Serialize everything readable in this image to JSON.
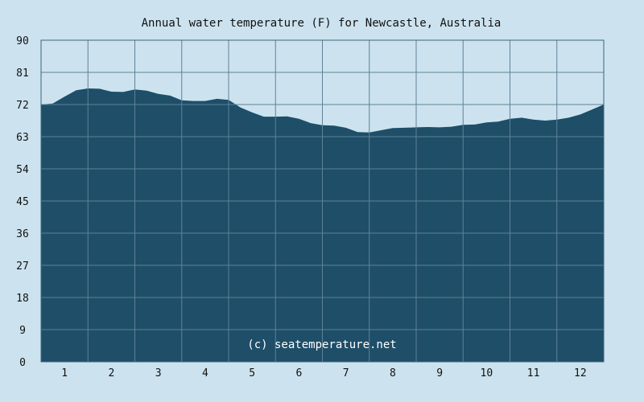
{
  "chart_data": {
    "type": "area",
    "title": "Annual water temperature (F) for Newcastle, Australia",
    "xlabel": "",
    "ylabel": "",
    "x_ticks": [
      "1",
      "2",
      "3",
      "4",
      "5",
      "6",
      "7",
      "8",
      "9",
      "10",
      "11",
      "12"
    ],
    "y_ticks": [
      "0",
      "9",
      "18",
      "27",
      "36",
      "45",
      "54",
      "63",
      "72",
      "81",
      "90"
    ],
    "ylim": [
      0,
      90
    ],
    "xlim": [
      0.5,
      12.5
    ],
    "grid": true,
    "watermark": "(c) seatemperature.net",
    "colors": {
      "background": "#cce3ef",
      "fill": "#1e4e68",
      "grid_light": "#5f8297",
      "grid_dark": "#3d6478",
      "frame": "#3d6478"
    },
    "series": [
      {
        "x": [
          0.5,
          0.75,
          1.0,
          1.25,
          1.5,
          1.75,
          2.0,
          2.25,
          2.5,
          2.75,
          3.0,
          3.25,
          3.5,
          3.75,
          4.0,
          4.25,
          4.5,
          4.75,
          5.0,
          5.25,
          5.5,
          5.75,
          6.0,
          6.25,
          6.5,
          6.75,
          7.0,
          7.25,
          7.5,
          7.75,
          8.0,
          8.25,
          8.5,
          8.75,
          9.0,
          9.25,
          9.5,
          9.75,
          10.0,
          10.25,
          10.5,
          10.75,
          11.0,
          11.25,
          11.5,
          11.75,
          12.0,
          12.25,
          12.5
        ],
        "y": [
          72.0,
          72.3,
          74.2,
          76.0,
          76.5,
          76.4,
          75.6,
          75.5,
          76.2,
          75.9,
          75.0,
          74.5,
          73.2,
          73.0,
          73.0,
          73.6,
          73.3,
          71.2,
          69.8,
          68.6,
          68.6,
          68.7,
          68.0,
          66.8,
          66.2,
          66.1,
          65.5,
          64.3,
          64.2,
          64.8,
          65.4,
          65.5,
          65.6,
          65.7,
          65.6,
          65.8,
          66.3,
          66.4,
          67.0,
          67.2,
          68.0,
          68.3,
          67.8,
          67.5,
          67.8,
          68.3,
          69.2,
          70.6,
          72.0
        ]
      }
    ]
  }
}
